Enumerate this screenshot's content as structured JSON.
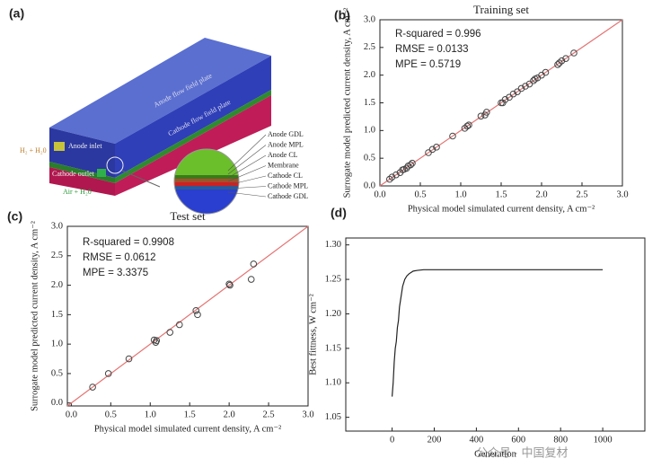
{
  "panel_a": {
    "label": "(a)",
    "anode_plate": "Anode flow field plate",
    "cathode_plate": "Cathode flow field plate",
    "anode_inlet": "Anode inlet",
    "cathode_outlet": "Cathode outlet",
    "h2_in": "H₂ + H₂0",
    "air_in": "Air + H₂0",
    "layers": [
      "Anode GDL",
      "Anode MPL",
      "Anode CL",
      "Membrane",
      "Cathode CL",
      "Cathode MPL",
      "Cathode GDL"
    ]
  },
  "chart_data": [
    {
      "type": "scatter",
      "label": "(b)",
      "title": "Training set",
      "xlabel": "Physical model simulated current density, A cm⁻²",
      "ylabel": "Surrogate model predicted current density, A cm⁻²",
      "annotations": [
        "R-squared = 0.996",
        "RMSE = 0.0133",
        "MPE = 0.5719"
      ],
      "x": [
        0.12,
        0.15,
        0.2,
        0.25,
        0.28,
        0.3,
        0.33,
        0.35,
        0.38,
        0.4,
        0.6,
        0.65,
        0.7,
        0.9,
        1.05,
        1.08,
        1.1,
        1.25,
        1.3,
        1.32,
        1.5,
        1.52,
        1.55,
        1.6,
        1.65,
        1.7,
        1.75,
        1.8,
        1.85,
        1.9,
        1.92,
        1.95,
        2.0,
        2.05,
        2.2,
        2.22,
        2.25,
        2.3,
        2.4
      ],
      "values": [
        0.12,
        0.16,
        0.2,
        0.24,
        0.29,
        0.3,
        0.32,
        0.36,
        0.38,
        0.41,
        0.6,
        0.66,
        0.7,
        0.9,
        1.04,
        1.08,
        1.1,
        1.26,
        1.28,
        1.33,
        1.5,
        1.5,
        1.56,
        1.6,
        1.66,
        1.7,
        1.76,
        1.8,
        1.84,
        1.9,
        1.93,
        1.95,
        2.0,
        2.05,
        2.19,
        2.22,
        2.26,
        2.3,
        2.4
      ],
      "color": "#444444",
      "ref_color": "#e57373",
      "xlim": [
        0,
        3
      ],
      "ylim": [
        0,
        3
      ],
      "xticks": [
        {
          "value": 0,
          "label": "0.0"
        },
        0.5,
        {
          "value": 1,
          "label": "1.0"
        },
        1.5,
        {
          "value": 2,
          "label": "2.0"
        },
        2.5,
        {
          "value": 3,
          "label": "3.0"
        }
      ],
      "yticks": [
        {
          "value": 0,
          "label": "0.0"
        },
        0.5,
        {
          "value": 1,
          "label": "1.0"
        },
        1.5,
        {
          "value": 2,
          "label": "2.0"
        },
        2.5,
        {
          "value": 3,
          "label": "3.0"
        }
      ]
    },
    {
      "type": "scatter",
      "label": "(c)",
      "title": "Test set",
      "xlabel": "Physical model simulated current density, A cm⁻²",
      "ylabel": "Surrogate model predicted current density, A cm⁻²",
      "annotations": [
        "R-squared = 0.9908",
        "RMSE = 0.0612",
        "MPE = 3.3375"
      ],
      "x": [
        0.27,
        0.47,
        0.73,
        1.05,
        1.07,
        1.08,
        1.25,
        1.37,
        1.58,
        1.6,
        2.0,
        2.01,
        2.28,
        2.31
      ],
      "values": [
        0.27,
        0.5,
        0.75,
        1.07,
        1.03,
        1.06,
        1.2,
        1.33,
        1.57,
        1.5,
        2.02,
        2.0,
        2.1,
        2.36
      ],
      "color": "#444444",
      "ref_color": "#e57373",
      "xlim": [
        -0.05,
        3
      ],
      "ylim": [
        -0.05,
        3
      ],
      "xticks": [
        {
          "value": 0,
          "label": "0.0"
        },
        0.5,
        {
          "value": 1,
          "label": "1.0"
        },
        1.5,
        {
          "value": 2,
          "label": "2.0"
        },
        2.5,
        {
          "value": 3,
          "label": "3.0"
        }
      ],
      "yticks": [
        {
          "value": 0,
          "label": "0.0"
        },
        0.5,
        {
          "value": 1,
          "label": "1.0"
        },
        1.5,
        {
          "value": 2,
          "label": "2.0"
        },
        2.5,
        {
          "value": 3,
          "label": "3.0"
        }
      ]
    },
    {
      "type": "line",
      "label": "(d)",
      "xlabel": "Generation",
      "ylabel": "Best fittness, W cm⁻²",
      "x": [
        0,
        5,
        10,
        15,
        20,
        25,
        30,
        35,
        40,
        45,
        50,
        55,
        60,
        70,
        80,
        90,
        100,
        120,
        150,
        200,
        300,
        500,
        800,
        1000
      ],
      "values": [
        1.08,
        1.1,
        1.13,
        1.15,
        1.16,
        1.18,
        1.19,
        1.21,
        1.22,
        1.23,
        1.24,
        1.245,
        1.25,
        1.255,
        1.258,
        1.26,
        1.262,
        1.263,
        1.264,
        1.264,
        1.264,
        1.264,
        1.264,
        1.264
      ],
      "color": "#222222",
      "xlim": [
        -220,
        1200
      ],
      "ylim": [
        1.03,
        1.31
      ],
      "xticks": [
        0,
        200,
        400,
        600,
        800,
        1000
      ],
      "yticks": [
        1.05,
        {
          "value": 1.1,
          "label": "1.10"
        },
        1.15,
        {
          "value": 1.2,
          "label": "1.20"
        },
        1.25,
        {
          "value": 1.3,
          "label": "1.30"
        }
      ]
    }
  ],
  "watermark": "公众号 · 中国复材"
}
